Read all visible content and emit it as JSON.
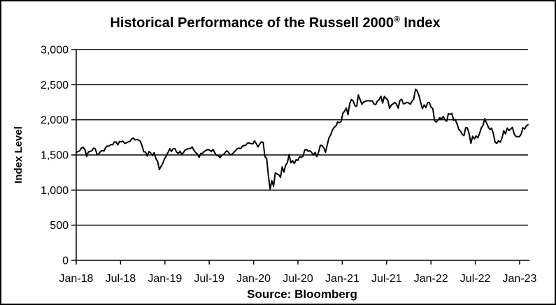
{
  "title": {
    "text_before_mark": "Historical Performance of the Russell 2000",
    "registered_mark": "®",
    "text_after_mark": " Index"
  },
  "source_label": "Source: Bloomberg",
  "colors": {
    "line": "#000000",
    "gridline": "#000000",
    "background": "#ffffff",
    "text": "#000000"
  },
  "chart_data": {
    "type": "line",
    "title": "Historical Performance of the Russell 2000® Index",
    "xlabel": "",
    "ylabel": "Index Level",
    "source": "Source: Bloomberg",
    "grid": "horizontal",
    "legend": "none",
    "ylim": [
      0,
      3000
    ],
    "ytick_step": 500,
    "y_tick_labels": [
      "0",
      "500",
      "1,000",
      "1,500",
      "2,000",
      "2,500",
      "3,000"
    ],
    "x_tick_labels": [
      "Jan-18",
      "Jul-18",
      "Jan-19",
      "Jul-19",
      "Jan-20",
      "Jul-20",
      "Jan-21",
      "Jul-21",
      "Jan-22",
      "Jul-22",
      "Jan-23"
    ],
    "x_range_description": "Weekly observations, January 2018 through early February 2023",
    "series": [
      {
        "name": "Russell 2000 Index Level",
        "values": [
          1536,
          1549,
          1560,
          1598,
          1608,
          1577,
          1477,
          1543,
          1549,
          1560,
          1597,
          1586,
          1510,
          1513,
          1549,
          1564,
          1556,
          1607,
          1627,
          1626,
          1648,
          1645,
          1684,
          1686,
          1643,
          1694,
          1687,
          1696,
          1663,
          1673,
          1686,
          1692,
          1726,
          1740,
          1713,
          1721,
          1712,
          1696,
          1632,
          1546,
          1542,
          1484,
          1549,
          1529,
          1488,
          1533,
          1448,
          1410,
          1292,
          1337,
          1380,
          1447,
          1482,
          1535,
          1588,
          1549,
          1590,
          1590,
          1539,
          1521,
          1553,
          1505,
          1539,
          1572,
          1584,
          1591,
          1591,
          1614,
          1565,
          1535,
          1514,
          1465,
          1522,
          1523,
          1549,
          1567,
          1575,
          1570,
          1548,
          1579,
          1533,
          1493,
          1494,
          1460,
          1495,
          1505,
          1533,
          1560,
          1538,
          1501,
          1511,
          1536,
          1562,
          1589,
          1597,
          1589,
          1625,
          1634,
          1638,
          1672,
          1669,
          1661,
          1658,
          1700,
          1662,
          1614,
          1657,
          1687,
          1679,
          1476,
          1449,
          1210,
          1014,
          1132,
          1052,
          1246,
          1229,
          1217,
          1182,
          1330,
          1256,
          1355,
          1394,
          1507,
          1388,
          1418,
          1378,
          1431,
          1423,
          1473,
          1467,
          1480,
          1569,
          1577,
          1552,
          1562,
          1535,
          1497,
          1537,
          1475,
          1539,
          1637,
          1634,
          1603,
          1538,
          1644,
          1744,
          1785,
          1855,
          1892,
          1911,
          1970,
          1959,
          1975,
          2091,
          2123,
          2168,
          2073,
          2233,
          2289,
          2266,
          2201,
          2192,
          2353,
          2287,
          2221,
          2253,
          2263,
          2271,
          2272,
          2266,
          2271,
          2225,
          2215,
          2269,
          2286,
          2336,
          2237,
          2334,
          2306,
          2280,
          2163,
          2210,
          2226,
          2248,
          2223,
          2168,
          2277,
          2292,
          2227,
          2233,
          2248,
          2241,
          2221,
          2266,
          2297,
          2437,
          2411,
          2343,
          2246,
          2159,
          2212,
          2174,
          2242,
          2245,
          2179,
          2160,
          1988,
          1968,
          1997,
          2030,
          2009,
          2048,
          2001,
          1980,
          2086,
          2078,
          2091,
          1995,
          2005,
          1941,
          1864,
          1840,
          1793,
          1774,
          1888,
          1883,
          1800,
          1666,
          1766,
          1728,
          1770,
          1744,
          1806,
          1885,
          1922,
          2017,
          1957,
          1899,
          1862,
          1882,
          1799,
          1680,
          1665,
          1703,
          1682,
          1742,
          1847,
          1800,
          1882,
          1847,
          1869,
          1892,
          1797,
          1763,
          1761,
          1761,
          1793,
          1887,
          1868,
          1911,
          1931
        ]
      }
    ]
  }
}
